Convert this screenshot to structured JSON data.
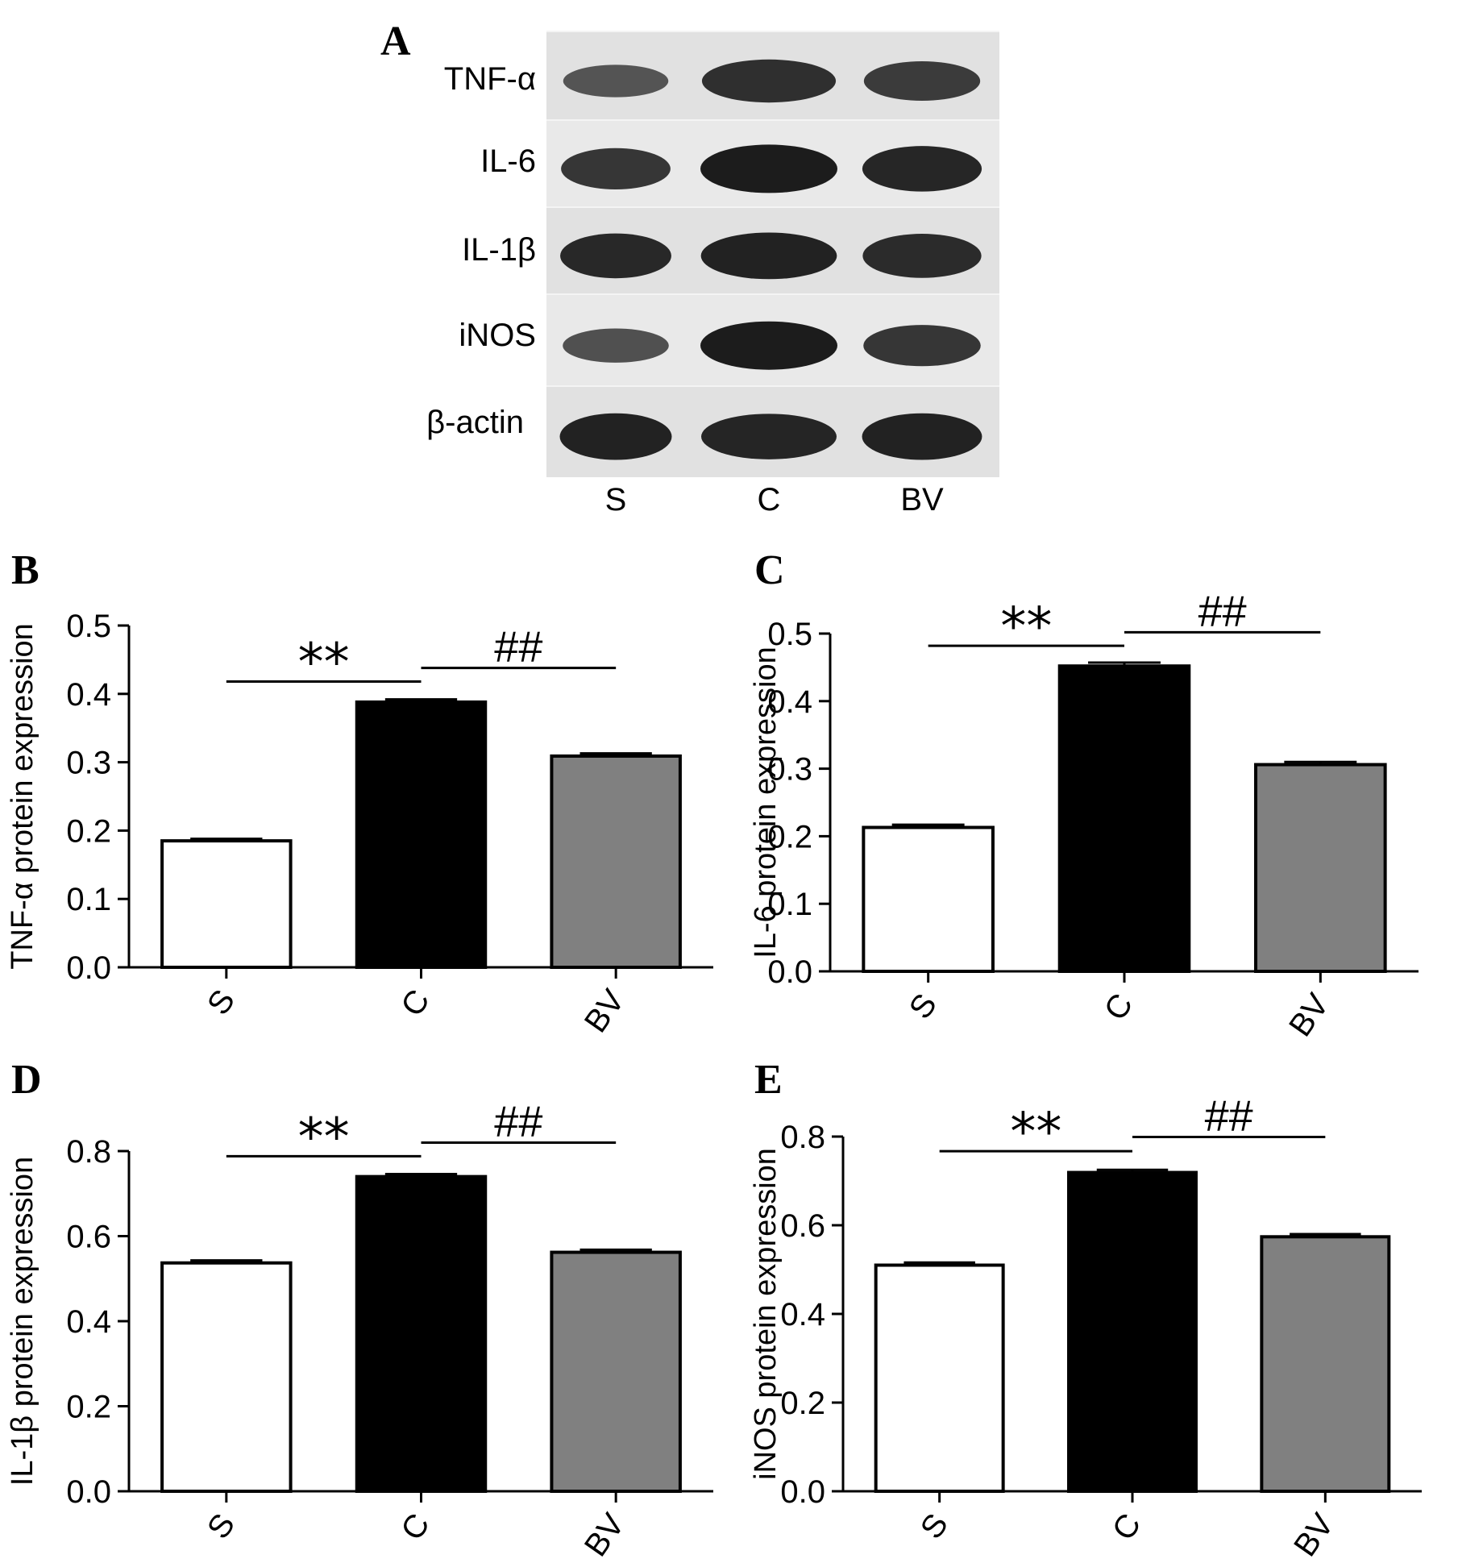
{
  "panel_a": {
    "letter": "A",
    "proteins": [
      "TNF-α",
      "IL-6",
      "IL-1β",
      "iNOS",
      "β-actin"
    ],
    "lanes": [
      "S",
      "C",
      "BV"
    ],
    "band_intensity": [
      [
        0.55,
        0.85,
        0.75
      ],
      [
        0.8,
        1.0,
        0.92
      ],
      [
        0.9,
        0.95,
        0.88
      ],
      [
        0.6,
        1.0,
        0.8
      ],
      [
        0.95,
        0.92,
        0.95
      ]
    ],
    "blot_colors": {
      "background": "#e6e6e6",
      "band": "#111111"
    }
  },
  "chart_data": [
    {
      "letter": "B",
      "type": "bar",
      "categories": [
        "S",
        "C",
        "BV"
      ],
      "values": [
        0.185,
        0.388,
        0.309
      ],
      "errors": [
        0.003,
        0.004,
        0.004
      ],
      "ylabel": "TNF-α protein expression",
      "ylim": [
        0,
        0.5
      ],
      "yticks": [
        "0.0",
        "0.1",
        "0.2",
        "0.3",
        "0.4",
        "0.5"
      ],
      "sig_left": "**",
      "sig_right": "##",
      "bar_colors": [
        "#ffffff",
        "#000000",
        "#808080"
      ]
    },
    {
      "letter": "C",
      "type": "bar",
      "categories": [
        "S",
        "C",
        "BV"
      ],
      "values": [
        0.213,
        0.452,
        0.306
      ],
      "errors": [
        0.004,
        0.005,
        0.004
      ],
      "ylabel": "IL-6 protein expression",
      "ylim": [
        0,
        0.5
      ],
      "yticks": [
        "0.0",
        "0.1",
        "0.2",
        "0.3",
        "0.4",
        "0.5"
      ],
      "sig_left": "**",
      "sig_right": "##",
      "bar_colors": [
        "#ffffff",
        "#000000",
        "#808080"
      ]
    },
    {
      "letter": "D",
      "type": "bar",
      "categories": [
        "S",
        "C",
        "BV"
      ],
      "values": [
        0.537,
        0.74,
        0.562
      ],
      "errors": [
        0.006,
        0.006,
        0.006
      ],
      "ylabel": "IL-1β protein expression",
      "ylim": [
        0,
        0.8
      ],
      "yticks": [
        "0.0",
        "0.2",
        "0.4",
        "0.6",
        "0.8"
      ],
      "sig_left": "**",
      "sig_right": "##",
      "bar_colors": [
        "#ffffff",
        "#000000",
        "#808080"
      ]
    },
    {
      "letter": "E",
      "type": "bar",
      "categories": [
        "S",
        "C",
        "BV"
      ],
      "values": [
        0.51,
        0.719,
        0.574
      ],
      "errors": [
        0.006,
        0.006,
        0.006
      ],
      "ylabel": "iNOS protein expression",
      "ylim": [
        0,
        0.8
      ],
      "yticks": [
        "0.0",
        "0.2",
        "0.4",
        "0.6",
        "0.8"
      ],
      "sig_left": "**",
      "sig_right": "##",
      "bar_colors": [
        "#ffffff",
        "#000000",
        "#808080"
      ]
    }
  ]
}
